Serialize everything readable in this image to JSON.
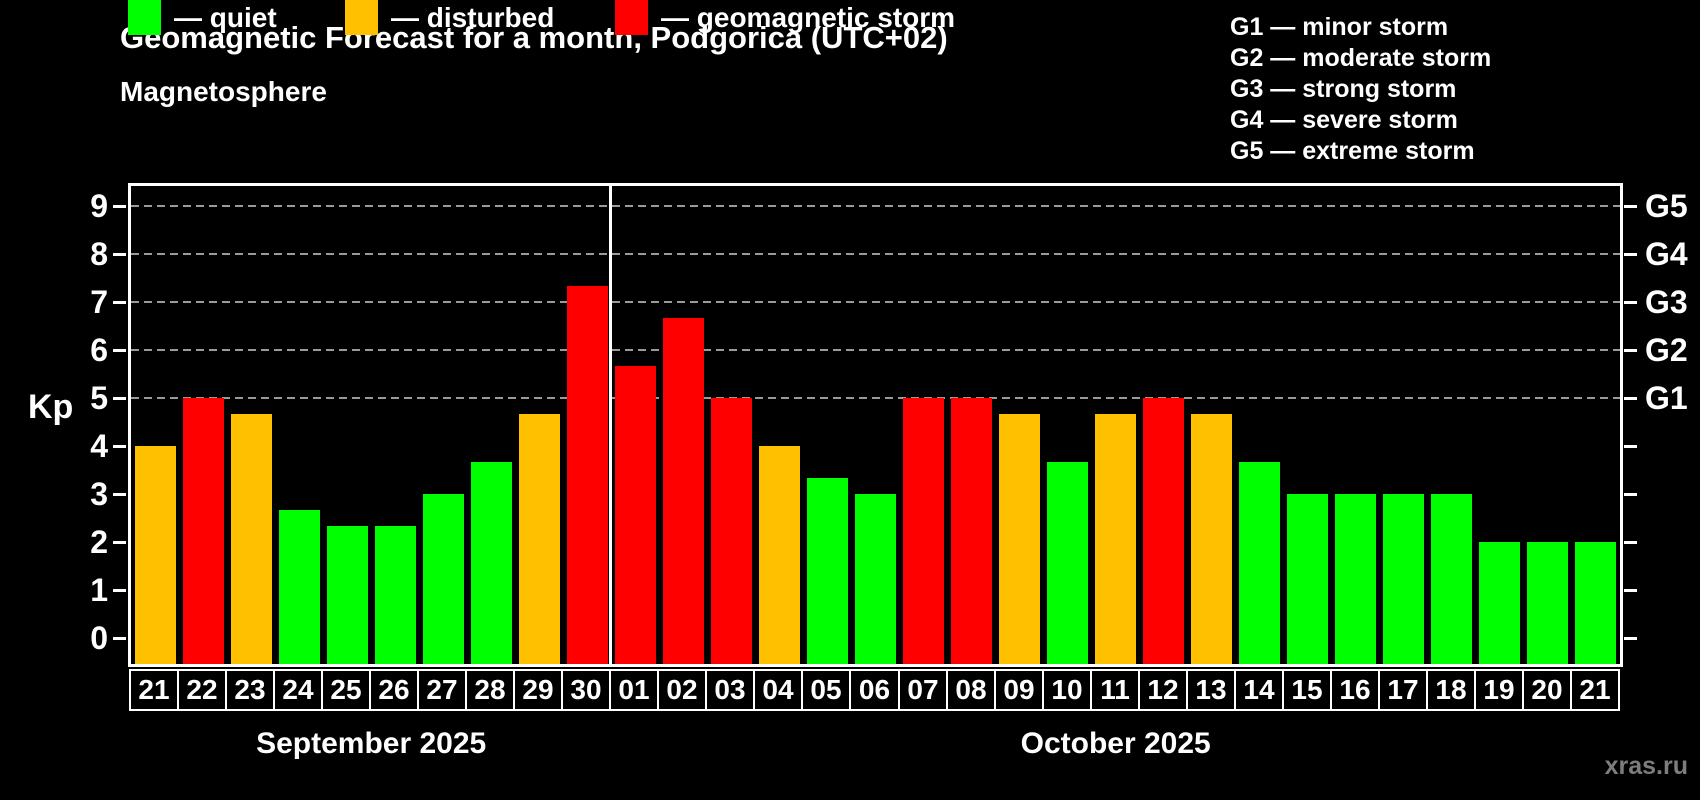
{
  "title": "Geomagnetic Forecast for a month, Podgorica (UTC+02)",
  "subtitle": "Magnetosphere",
  "watermark": "xras.ru",
  "colors": {
    "quiet": "#00ff00",
    "disturbed": "#ffc000",
    "storm": "#ff0000",
    "axis": "#ffffff",
    "grid": "#9a9a9a",
    "background": "#000000",
    "watermark": "#7d7d7d"
  },
  "legend": {
    "items": [
      {
        "key": "quiet",
        "label": "— quiet"
      },
      {
        "key": "disturbed",
        "label": "— disturbed"
      },
      {
        "key": "storm",
        "label": "— geomagnetic storm"
      }
    ]
  },
  "storm_scale_legend": {
    "lines": [
      "G1 — minor storm",
      "G2 — moderate storm",
      "G3 — strong storm",
      "G4 — severe storm",
      "G5 — extreme storm"
    ]
  },
  "chart_data": {
    "type": "bar",
    "title": "Geomagnetic Forecast for a month, Podgorica (UTC+02)",
    "subtitle": "Magnetosphere",
    "ylabel": "Kp",
    "ylim": [
      0,
      9.4
    ],
    "yticks": [
      0,
      1,
      2,
      3,
      4,
      5,
      6,
      7,
      8,
      9
    ],
    "gridlines_at": [
      5,
      6,
      7,
      8,
      9
    ],
    "grid": "dashed horizontal at storm levels only",
    "right_axis_labels": [
      {
        "kp": 5,
        "label": "G1"
      },
      {
        "kp": 6,
        "label": "G2"
      },
      {
        "kp": 7,
        "label": "G3"
      },
      {
        "kp": 8,
        "label": "G4"
      },
      {
        "kp": 9,
        "label": "G5"
      }
    ],
    "months": [
      {
        "label": "September 2025",
        "days": 10
      },
      {
        "label": "October 2025",
        "days": 21
      }
    ],
    "bars": [
      {
        "date": "21",
        "kp": 4,
        "state": "disturbed"
      },
      {
        "date": "22",
        "kp": 5,
        "state": "storm"
      },
      {
        "date": "23",
        "kp": 4.67,
        "state": "disturbed"
      },
      {
        "date": "24",
        "kp": 2.67,
        "state": "quiet"
      },
      {
        "date": "25",
        "kp": 2.33,
        "state": "quiet"
      },
      {
        "date": "26",
        "kp": 2.33,
        "state": "quiet"
      },
      {
        "date": "27",
        "kp": 3,
        "state": "quiet"
      },
      {
        "date": "28",
        "kp": 3.67,
        "state": "quiet"
      },
      {
        "date": "29",
        "kp": 4.67,
        "state": "disturbed"
      },
      {
        "date": "30",
        "kp": 7.33,
        "state": "storm"
      },
      {
        "date": "01",
        "kp": 5.67,
        "state": "storm"
      },
      {
        "date": "02",
        "kp": 6.67,
        "state": "storm"
      },
      {
        "date": "03",
        "kp": 5,
        "state": "storm"
      },
      {
        "date": "04",
        "kp": 4,
        "state": "disturbed"
      },
      {
        "date": "05",
        "kp": 3.33,
        "state": "quiet"
      },
      {
        "date": "06",
        "kp": 3,
        "state": "quiet"
      },
      {
        "date": "07",
        "kp": 5,
        "state": "storm"
      },
      {
        "date": "08",
        "kp": 5,
        "state": "storm"
      },
      {
        "date": "09",
        "kp": 4.67,
        "state": "disturbed"
      },
      {
        "date": "10",
        "kp": 3.67,
        "state": "quiet"
      },
      {
        "date": "11",
        "kp": 4.67,
        "state": "disturbed"
      },
      {
        "date": "12",
        "kp": 5,
        "state": "storm"
      },
      {
        "date": "13",
        "kp": 4.67,
        "state": "disturbed"
      },
      {
        "date": "14",
        "kp": 3.67,
        "state": "quiet"
      },
      {
        "date": "15",
        "kp": 3,
        "state": "quiet"
      },
      {
        "date": "16",
        "kp": 3,
        "state": "quiet"
      },
      {
        "date": "17",
        "kp": 3,
        "state": "quiet"
      },
      {
        "date": "18",
        "kp": 3,
        "state": "quiet"
      },
      {
        "date": "19",
        "kp": 2,
        "state": "quiet"
      },
      {
        "date": "20",
        "kp": 2,
        "state": "quiet"
      },
      {
        "date": "21",
        "kp": 2,
        "state": "quiet"
      }
    ]
  }
}
